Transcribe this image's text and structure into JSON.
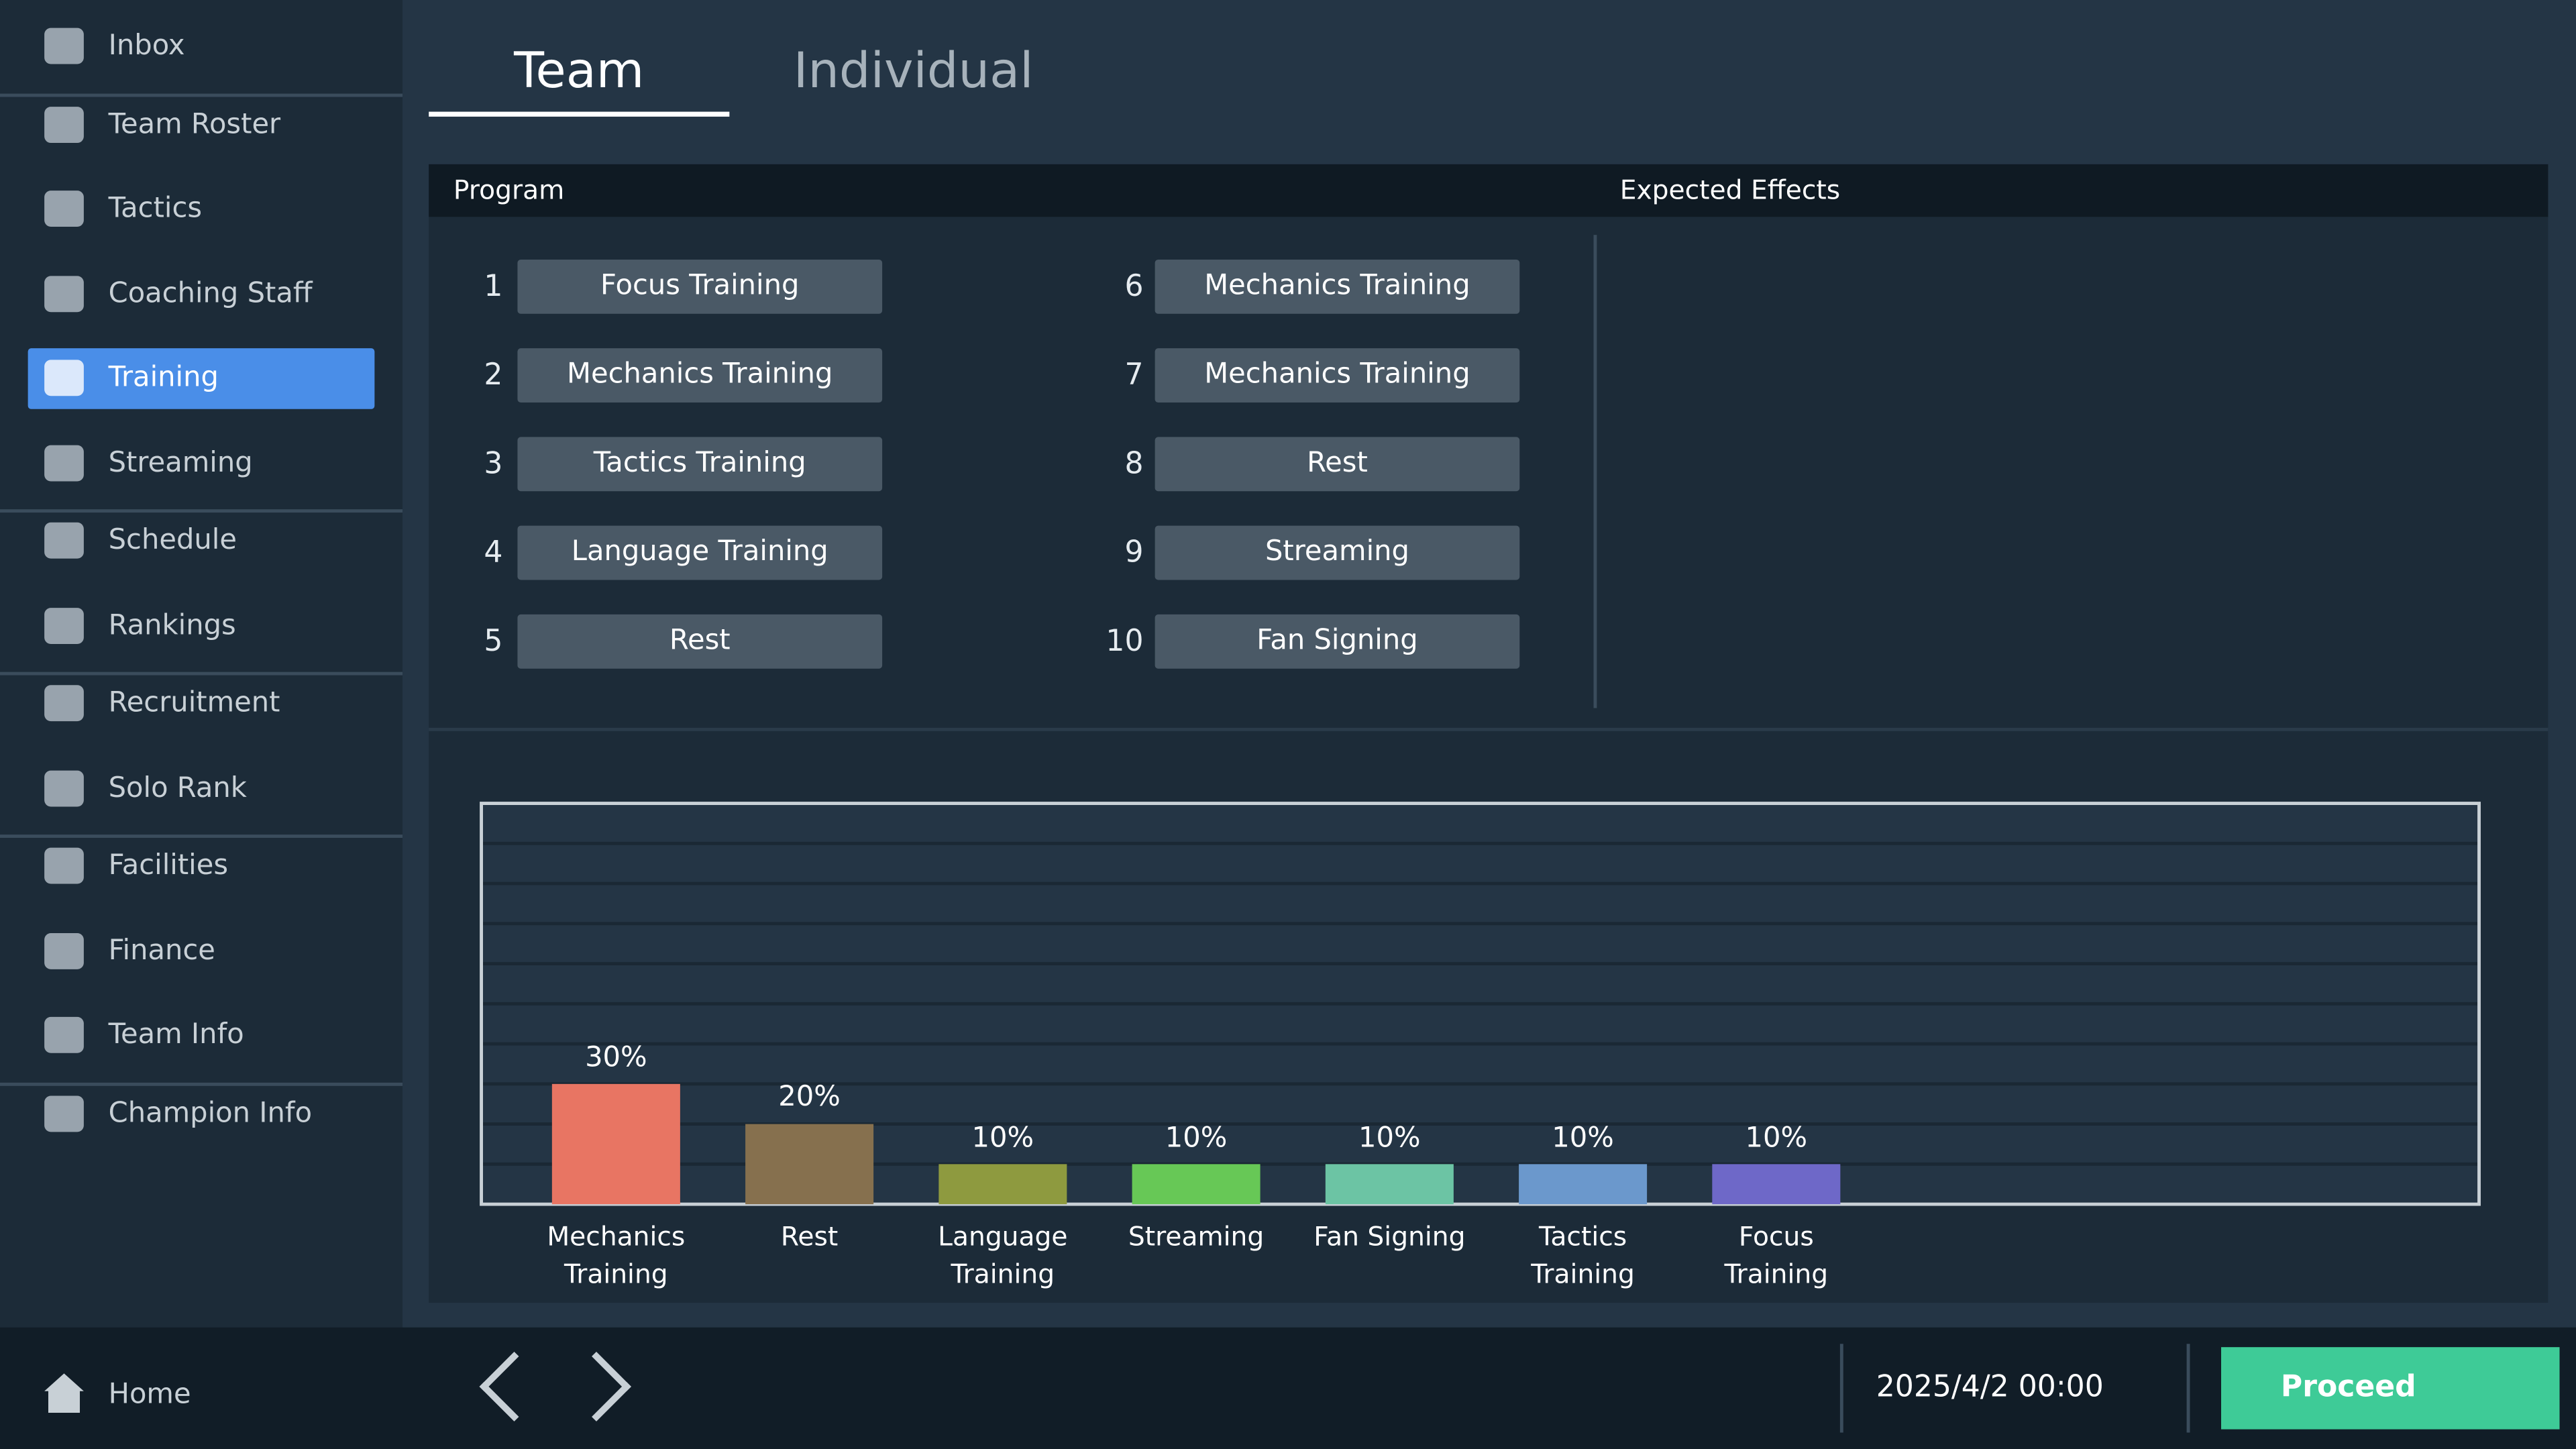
{
  "sidebar": {
    "groups": [
      [
        "Inbox"
      ],
      [
        "Team Roster",
        "Tactics",
        "Coaching Staff",
        "Training",
        "Streaming"
      ],
      [
        "Schedule",
        "Rankings"
      ],
      [
        "Recruitment",
        "Solo Rank"
      ],
      [
        "Facilities",
        "Finance",
        "Team Info"
      ],
      [
        "Champion Info"
      ]
    ],
    "active": "Training",
    "home": "Home"
  },
  "tabs": [
    "Team",
    "Individual"
  ],
  "active_tab": "Team",
  "panel": {
    "program_header": "Program",
    "effects_header": "Expected Effects",
    "program": [
      {
        "n": "1",
        "label": "Focus Training"
      },
      {
        "n": "2",
        "label": "Mechanics Training"
      },
      {
        "n": "3",
        "label": "Tactics Training"
      },
      {
        "n": "4",
        "label": "Language Training"
      },
      {
        "n": "5",
        "label": "Rest"
      },
      {
        "n": "6",
        "label": "Mechanics Training"
      },
      {
        "n": "7",
        "label": "Mechanics Training"
      },
      {
        "n": "8",
        "label": "Rest"
      },
      {
        "n": "9",
        "label": "Streaming"
      },
      {
        "n": "10",
        "label": "Fan Signing"
      }
    ]
  },
  "chart_data": {
    "type": "bar",
    "categories": [
      "Mechanics Training",
      "Rest",
      "Language Training",
      "Streaming",
      "Fan Signing",
      "Tactics Training",
      "Focus Training"
    ],
    "values": [
      30,
      20,
      10,
      10,
      10,
      10,
      10
    ],
    "value_labels": [
      "30%",
      "20%",
      "10%",
      "10%",
      "10%",
      "10%",
      "10%"
    ],
    "colors": [
      "#e87563",
      "#86704e",
      "#8e9a3f",
      "#67c856",
      "#6cc4a4",
      "#6b98cc",
      "#6e68c8"
    ],
    "ylim": [
      0,
      100
    ],
    "yticks": [
      0,
      10,
      20,
      30,
      40,
      50,
      60,
      70,
      80,
      90,
      100
    ],
    "grid": true
  },
  "footer": {
    "datetime": "2025/4/2 00:00",
    "proceed": "Proceed"
  }
}
